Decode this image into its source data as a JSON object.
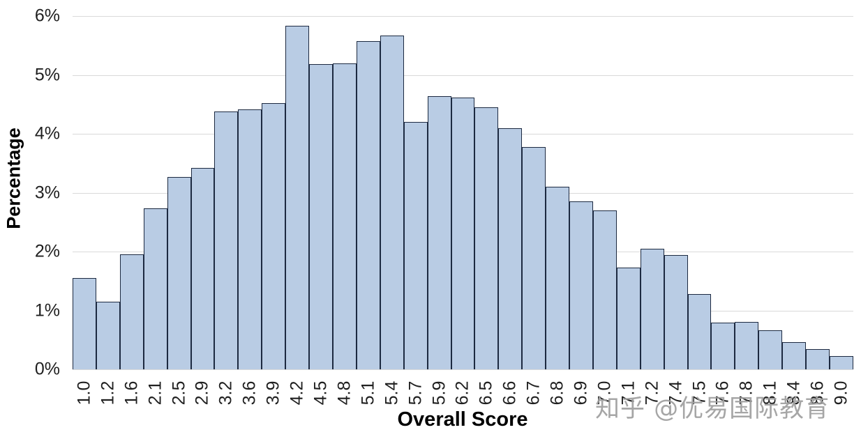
{
  "watermark": {
    "text": "知乎 @优易国际教育"
  },
  "chart_data": {
    "type": "bar",
    "title": "",
    "xlabel": "Overall Score",
    "ylabel": "Percentage",
    "categories": [
      "1.0",
      "1.2",
      "1.6",
      "2.1",
      "2.5",
      "2.9",
      "3.2",
      "3.6",
      "3.9",
      "4.2",
      "4.5",
      "4.8",
      "5.1",
      "5.4",
      "5.7",
      "5.9",
      "6.2",
      "6.5",
      "6.6",
      "6.7",
      "6.8",
      "6.9",
      "7.0",
      "7.1",
      "7.2",
      "7.4",
      "7.5",
      "7.6",
      "7.8",
      "8.1",
      "8.4",
      "8.6",
      "9.0"
    ],
    "values": [
      1.55,
      1.15,
      1.95,
      2.73,
      3.27,
      3.42,
      4.38,
      4.42,
      4.52,
      5.83,
      5.18,
      5.2,
      5.58,
      5.67,
      4.2,
      4.64,
      4.61,
      4.45,
      4.1,
      3.77,
      3.1,
      2.85,
      2.7,
      1.73,
      2.05,
      1.94,
      1.28,
      0.79,
      0.81,
      0.66,
      0.46,
      0.34,
      0.23
    ],
    "value_unit": "%",
    "ylim": [
      0,
      6
    ],
    "yticks": [
      "0%",
      "1%",
      "2%",
      "3%",
      "4%",
      "5%",
      "6%"
    ],
    "grid": "horizontal",
    "legend": "none",
    "bar_fill": "#b9cce4",
    "bar_border": "#1c2940",
    "gridline_color": "#d9d9d9"
  }
}
